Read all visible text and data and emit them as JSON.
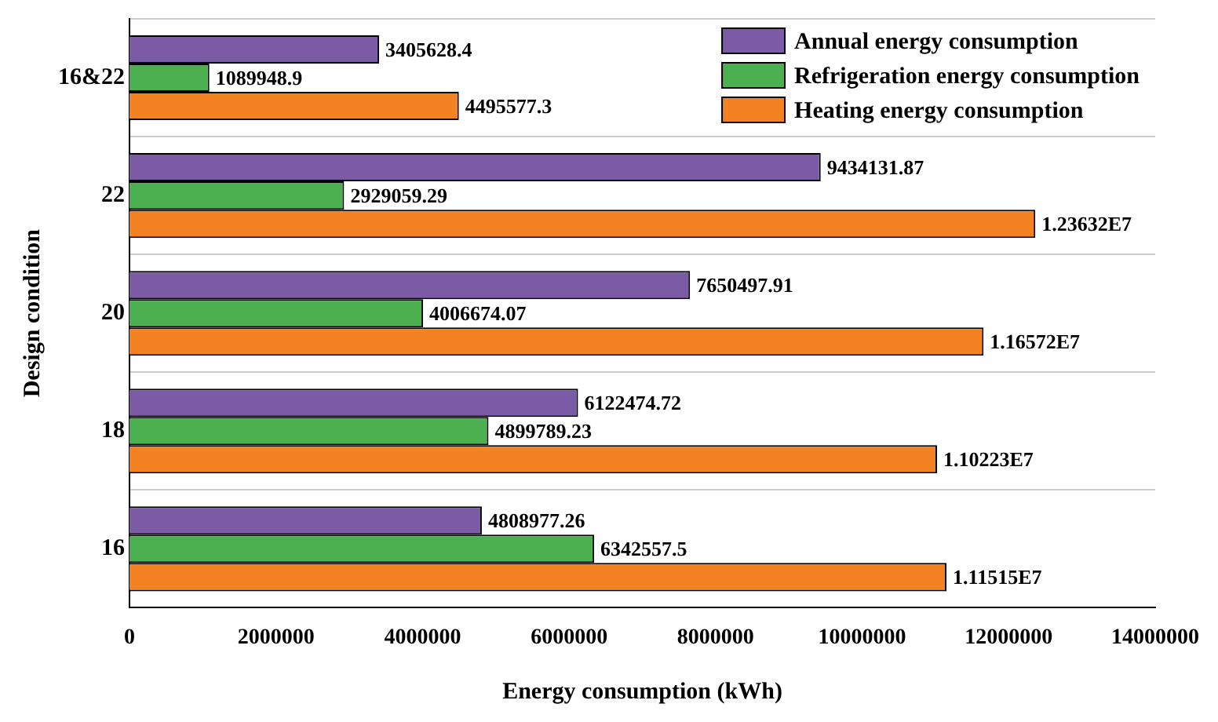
{
  "chart_data": {
    "type": "bar",
    "orientation": "horizontal",
    "xlabel": "Energy consumption (kWh)",
    "ylabel": "Design condition",
    "categories": [
      "16&22",
      "22",
      "20",
      "18",
      "16"
    ],
    "series": [
      {
        "name": "Annual energy consumption",
        "color": "#7b5aa6",
        "values": [
          3405628.4,
          9434131.87,
          7650497.91,
          6122474.72,
          4808977.26
        ],
        "value_labels": [
          "3405628.4",
          "9434131.87",
          "7650497.91",
          "6122474.72",
          "4808977.26"
        ]
      },
      {
        "name": "Refrigeration energy consumption",
        "color": "#4caf50",
        "values": [
          1089948.9,
          2929059.29,
          4006674.07,
          4899789.23,
          6342557.5
        ],
        "value_labels": [
          "1089948.9",
          "2929059.29",
          "4006674.07",
          "4899789.23",
          "6342557.5"
        ]
      },
      {
        "name": "Heating energy consumption",
        "color": "#f28222",
        "values": [
          4495577.3,
          12363200,
          11657200,
          11022300,
          11151500
        ],
        "value_labels": [
          "4495577.3",
          "1.23632E7",
          "1.16572E7",
          "1.10223E7",
          "1.11515E7"
        ]
      }
    ],
    "xlim": [
      0,
      14000000
    ],
    "xticks": [
      0,
      2000000,
      4000000,
      6000000,
      8000000,
      10000000,
      12000000,
      14000000
    ],
    "grid": "y",
    "legend": "top right"
  }
}
